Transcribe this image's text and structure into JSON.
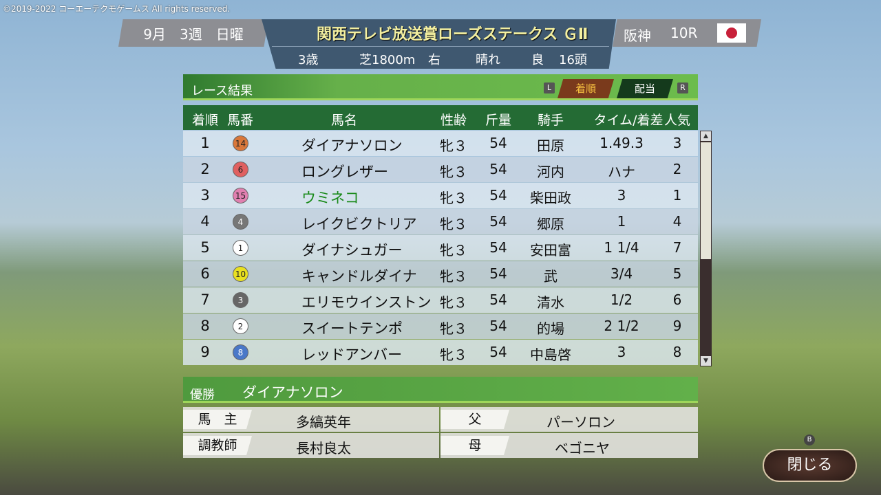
{
  "copyright": "©2019-2022 コーエーテクモゲームス All rights reserved.",
  "header": {
    "month": "9月",
    "week": "3週",
    "day": "日曜",
    "race_name": "関西テレビ放送賞ローズステークス ＧⅡ",
    "age": "3歳",
    "course": "芝1800m",
    "direction": "右",
    "weather": "晴れ",
    "track": "良",
    "runners": "16頭",
    "venue": "阪神",
    "race_no": "10R",
    "flag": "japan-flag"
  },
  "panel": {
    "title": "レース結果",
    "key_left": "L",
    "key_right": "R",
    "tabs": [
      {
        "label": "着順",
        "active": true
      },
      {
        "label": "配当",
        "active": false
      }
    ]
  },
  "columns": [
    "着順",
    "馬番",
    "馬名",
    "性齢",
    "斤量",
    "騎手",
    "タイム/着差",
    "人気"
  ],
  "rows": [
    {
      "pos": "1",
      "num": "14",
      "name": "ダイアナソロン",
      "sexage": "牝３",
      "weight": "54",
      "jockey": "田原",
      "time": "1.49.3",
      "pop": "3",
      "color": "#d9773a"
    },
    {
      "pos": "2",
      "num": "6",
      "name": "ロングレザー",
      "sexage": "牝３",
      "weight": "54",
      "jockey": "河内",
      "time": "ハナ",
      "pop": "2",
      "color": "#e06060"
    },
    {
      "pos": "3",
      "num": "15",
      "name": "ウミネコ",
      "sexage": "牝３",
      "weight": "54",
      "jockey": "柴田政",
      "time": "3",
      "pop": "1",
      "color": "#e080b0",
      "highlight": "#1a8a1a"
    },
    {
      "pos": "4",
      "num": "4",
      "name": "レイクビクトリア",
      "sexage": "牝３",
      "weight": "54",
      "jockey": "郷原",
      "time": "1",
      "pop": "4",
      "color": "#777777"
    },
    {
      "pos": "5",
      "num": "1",
      "name": "ダイナシュガー",
      "sexage": "牝３",
      "weight": "54",
      "jockey": "安田富",
      "time": "1 1/4",
      "pop": "7",
      "color": "#ffffff"
    },
    {
      "pos": "6",
      "num": "10",
      "name": "キャンドルダイナ",
      "sexage": "牝３",
      "weight": "54",
      "jockey": "武",
      "time": "3/4",
      "pop": "5",
      "color": "#e8e020"
    },
    {
      "pos": "7",
      "num": "3",
      "name": "エリモウインストン",
      "sexage": "牝３",
      "weight": "54",
      "jockey": "清水",
      "time": "1/2",
      "pop": "6",
      "color": "#666666"
    },
    {
      "pos": "8",
      "num": "2",
      "name": "スイートテンポ",
      "sexage": "牝３",
      "weight": "54",
      "jockey": "的場",
      "time": "2 1/2",
      "pop": "9",
      "color": "#ffffff"
    },
    {
      "pos": "9",
      "num": "8",
      "name": "レッドアンバー",
      "sexage": "牝３",
      "weight": "54",
      "jockey": "中島啓",
      "time": "3",
      "pop": "8",
      "color": "#4a78c8"
    }
  ],
  "scroll_fraction": 0.55,
  "winner": {
    "label": "優勝",
    "name": "ダイアナソロン"
  },
  "info": {
    "owner_label": "馬　主",
    "owner": "多縞英年",
    "trainer_label": "調教師",
    "trainer": "長村良太",
    "sire_label": "父",
    "sire": "パーソロン",
    "dam_label": "母",
    "dam": "ベゴニヤ"
  },
  "close": {
    "label": "閉じる",
    "key": "B"
  }
}
